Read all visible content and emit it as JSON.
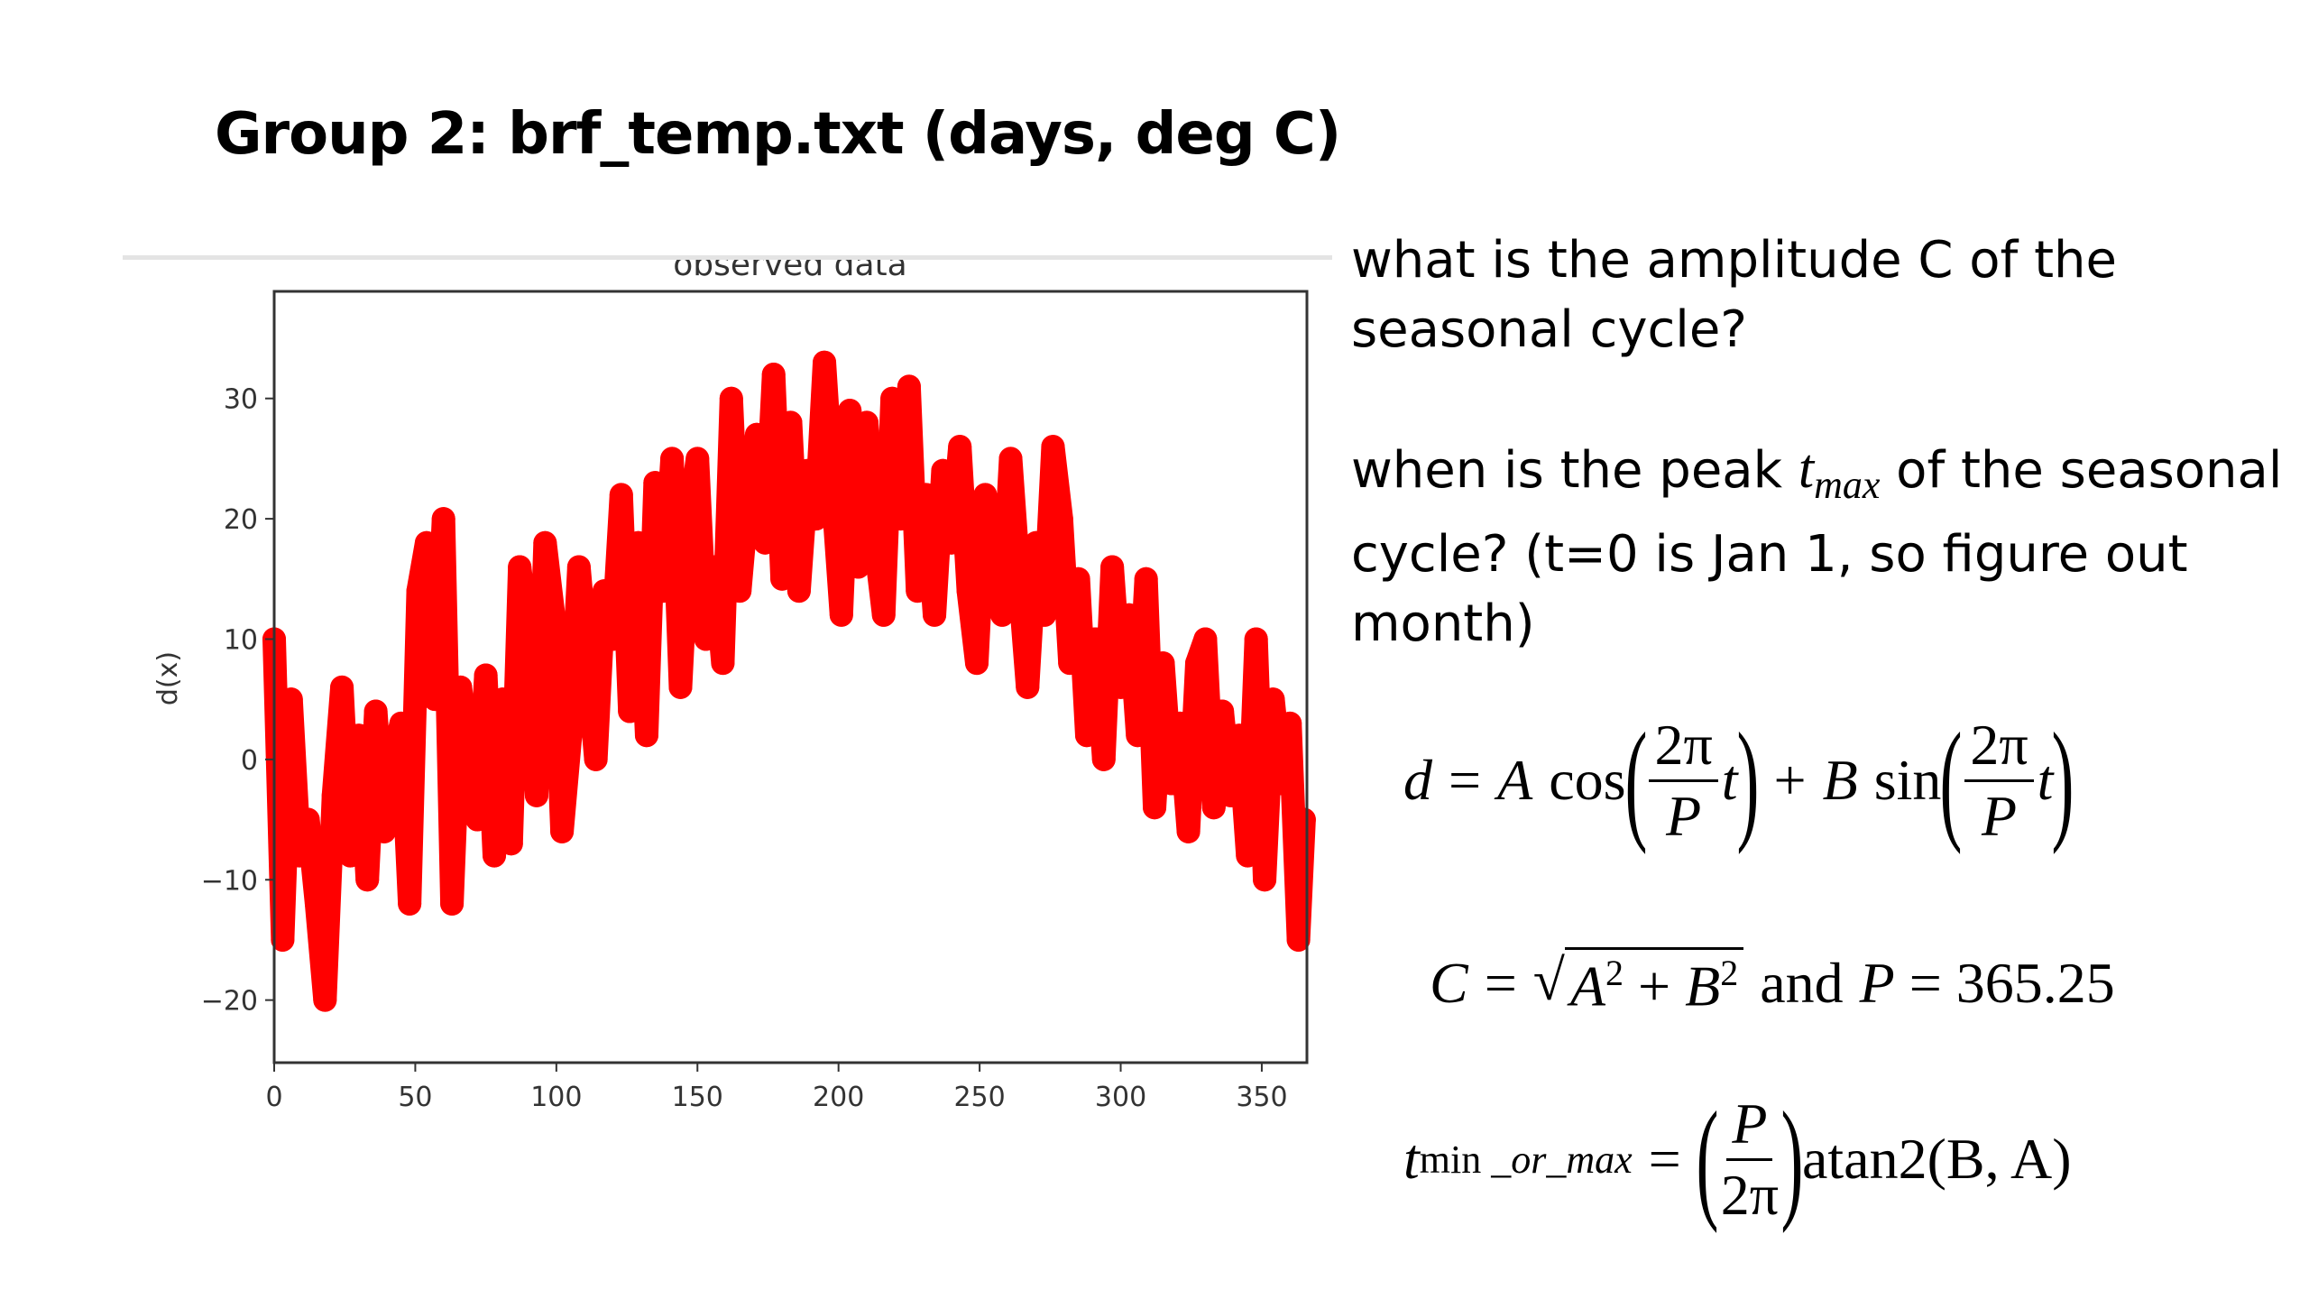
{
  "slide": {
    "title": "Group 2: brf_temp.txt (days, deg C)"
  },
  "questions": [
    {
      "lines": [
        "what is the amplitude C of the",
        "seasonal cycle?"
      ]
    },
    {
      "lines_prefix": "when is the peak ",
      "var": "t",
      "sub": "max",
      "lines_suffix": " of the seasonal",
      "lines": [
        "cycle? (t=0 is Jan 1, so figure out",
        "month)"
      ]
    }
  ],
  "equations": {
    "model": {
      "lhs": "d",
      "eq": "=",
      "A": "A",
      "cos": "cos",
      "num": "2π",
      "den": "P",
      "t": "t",
      "plus": "+",
      "B": "B",
      "sin": "sin"
    },
    "amplitude": {
      "C": "C",
      "eq": "=",
      "rad": "A",
      "sq": "2",
      "plus": "+",
      "rad2": "B",
      "and": "and",
      "P": "P",
      "Pval": "= 365.25"
    },
    "phase": {
      "t": "t",
      "sub_min": "min",
      "sub_rest": " _or_max",
      "eq": "=",
      "num": "P",
      "den": "2π",
      "fn": "atan2(B, A)"
    }
  },
  "chart_data": {
    "type": "scatter",
    "title": "observed data",
    "xlabel": "",
    "ylabel": "d(x)",
    "xlim": [
      0,
      366
    ],
    "ylim": [
      -25.2,
      38.9
    ],
    "xticks": [
      0,
      50,
      100,
      150,
      200,
      250,
      300,
      350
    ],
    "yticks": [
      -20,
      -10,
      0,
      10,
      20,
      30
    ],
    "marker_color": "#ff0000",
    "x": [
      0,
      3,
      6,
      9,
      12,
      15,
      18,
      21,
      24,
      27,
      30,
      33,
      36,
      39,
      42,
      45,
      48,
      51,
      54,
      57,
      60,
      63,
      66,
      69,
      72,
      75,
      78,
      81,
      84,
      87,
      90,
      93,
      96,
      99,
      102,
      105,
      108,
      111,
      114,
      117,
      120,
      123,
      126,
      129,
      132,
      135,
      138,
      141,
      144,
      147,
      150,
      153,
      156,
      159,
      162,
      165,
      168,
      171,
      174,
      177,
      180,
      183,
      186,
      189,
      192,
      195,
      198,
      201,
      204,
      207,
      210,
      213,
      216,
      219,
      222,
      225,
      228,
      231,
      234,
      237,
      240,
      243,
      246,
      249,
      252,
      255,
      258,
      261,
      264,
      267,
      270,
      273,
      276,
      279,
      282,
      285,
      288,
      291,
      294,
      297,
      300,
      303,
      306,
      309,
      312,
      315,
      318,
      321,
      324,
      327,
      330,
      333,
      336,
      339,
      342,
      345,
      348,
      351,
      354,
      357,
      360,
      363,
      365
    ],
    "y": [
      10,
      -15,
      5,
      -8,
      -5,
      -12,
      -20,
      -3,
      6,
      -8,
      2,
      -10,
      4,
      -6,
      0,
      3,
      -12,
      14,
      18,
      5,
      20,
      -12,
      6,
      0,
      -5,
      7,
      -8,
      5,
      -7,
      16,
      10,
      -3,
      18,
      12,
      -6,
      2,
      16,
      8,
      0,
      14,
      10,
      22,
      4,
      18,
      2,
      23,
      14,
      25,
      6,
      20,
      25,
      10,
      16,
      8,
      30,
      14,
      22,
      27,
      18,
      32,
      15,
      28,
      14,
      24,
      20,
      33,
      22,
      12,
      29,
      16,
      28,
      18,
      12,
      30,
      20,
      31,
      14,
      22,
      12,
      24,
      18,
      26,
      14,
      8,
      22,
      18,
      12,
      25,
      15,
      6,
      18,
      12,
      26,
      20,
      8,
      15,
      2,
      10,
      0,
      16,
      6,
      12,
      2,
      15,
      -4,
      8,
      -2,
      3,
      -6,
      8,
      10,
      -4,
      4,
      -3,
      2,
      -8,
      10,
      -10,
      5,
      -2,
      3,
      -15,
      -5
    ]
  }
}
